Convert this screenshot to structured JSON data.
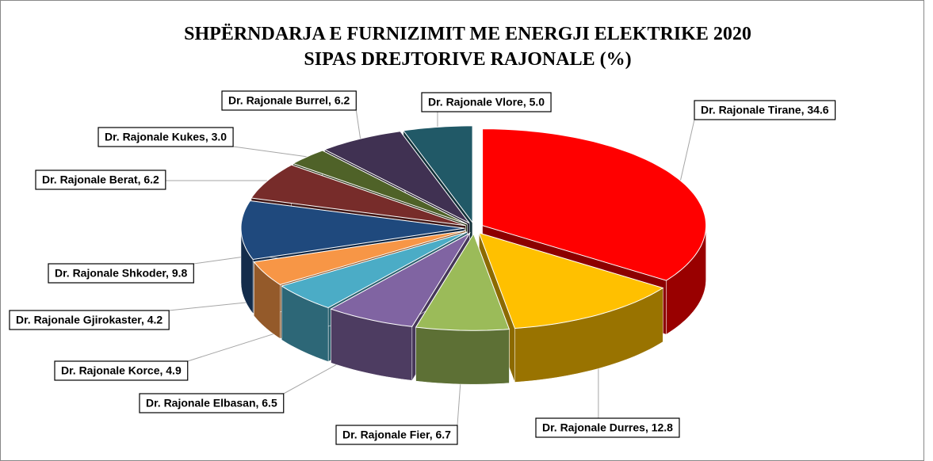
{
  "chart_data": {
    "type": "pie3d",
    "title": "SHPËRNDARJA E FURNIZIMIT ME ENERGJI ELEKTRIKE 2020",
    "subtitle": "SIPAS DREJTORIVE RAJONALE (%)",
    "values": [
      34.6,
      12.8,
      6.7,
      6.5,
      4.9,
      4.2,
      9.8,
      6.2,
      3.0,
      6.2,
      5.0
    ],
    "value_labels": [
      "Dr. Rajonale Tirane, 34.6",
      "Dr. Rajonale Durres, 12.8",
      "Dr. Rajonale Fier, 6.7",
      "Dr. Rajonale Elbasan, 6.5",
      "Dr. Rajonale Korce, 4.9",
      "Dr. Rajonale Gjirokaster, 4.2",
      "Dr. Rajonale Shkoder, 9.8",
      "Dr. Rajonale Berat, 6.2",
      "Dr. Rajonale Kukes, 3.0",
      "Dr. Rajonale Burrel, 6.2",
      "Dr. Rajonale Vlore, 5.0"
    ],
    "colors": [
      "#ff0000",
      "#ffc000",
      "#9bbb59",
      "#8064a2",
      "#4bacc6",
      "#f79646",
      "#1f497d",
      "#772c2a",
      "#4f6228",
      "#403152",
      "#215967"
    ]
  }
}
